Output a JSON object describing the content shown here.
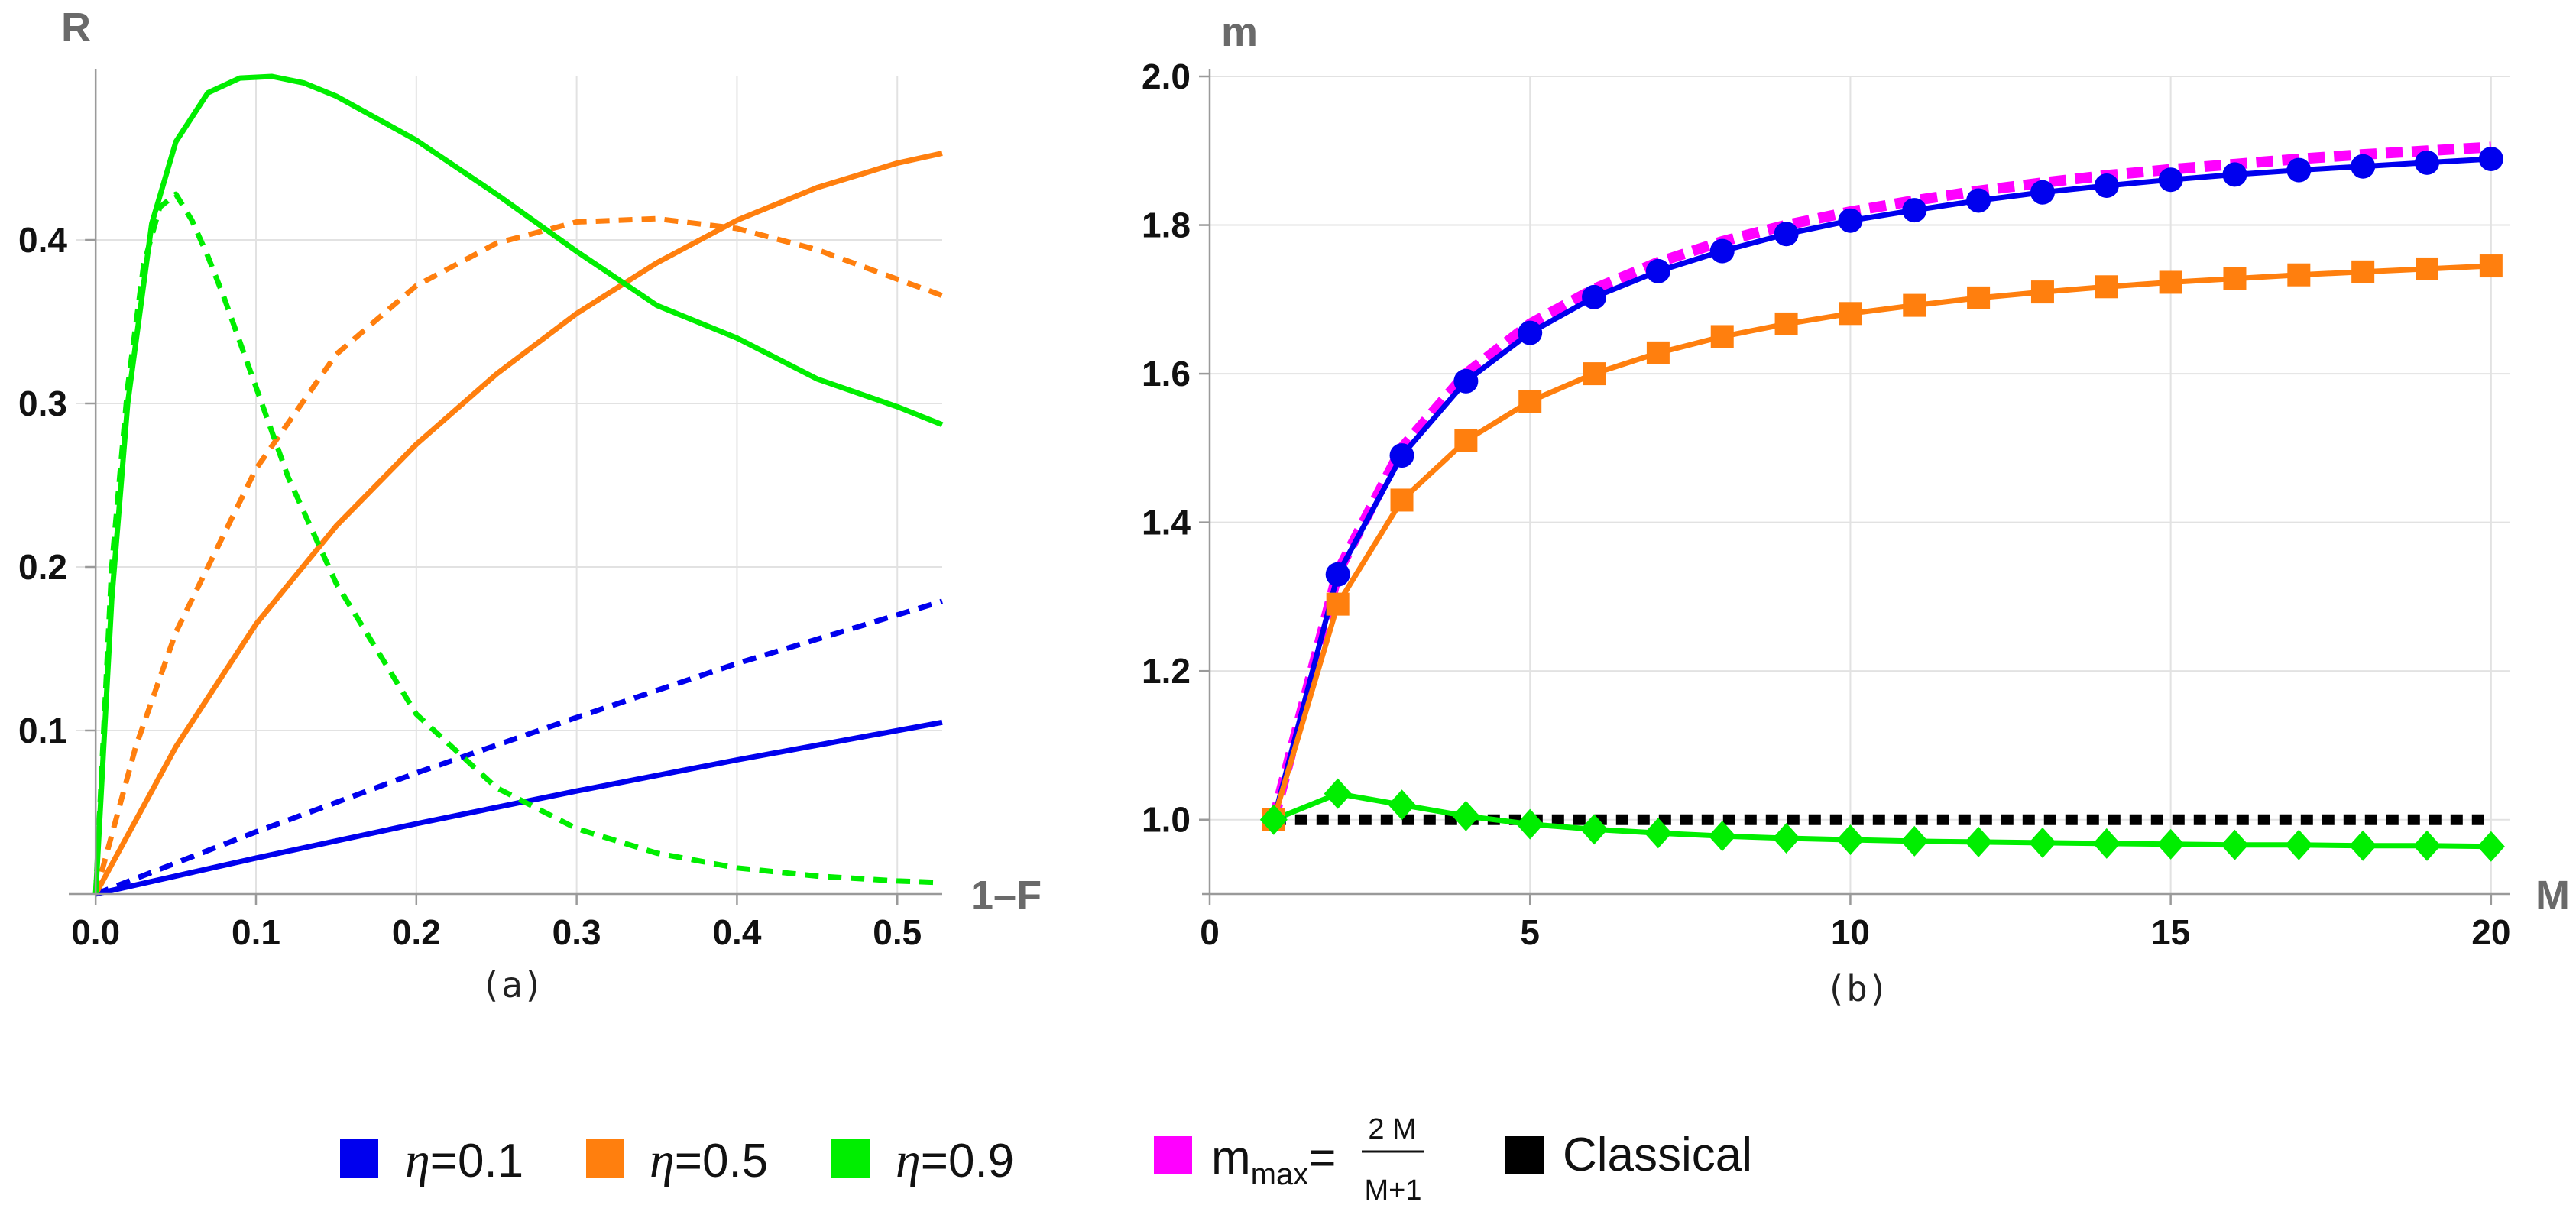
{
  "chart_data": [
    {
      "type": "line",
      "caption": "(a)",
      "xlabel": "1–F",
      "ylabel": "R",
      "xlim": [
        -0.012,
        0.528
      ],
      "ylim": [
        0,
        0.5
      ],
      "xticks": [
        "0.0",
        "0.1",
        "0.2",
        "0.3",
        "0.4",
        "0.5"
      ],
      "yticks": [
        "0.1",
        "0.2",
        "0.3",
        "0.4"
      ],
      "grid": true,
      "series": [
        {
          "name": "η=0.1 solid",
          "color": "#0000ee",
          "dash": false,
          "x": [
            0,
            0.1,
            0.2,
            0.3,
            0.4,
            0.528
          ],
          "y": [
            0,
            0.022,
            0.043,
            0.063,
            0.082,
            0.105
          ]
        },
        {
          "name": "η=0.1 dashed",
          "color": "#0000ee",
          "dash": true,
          "x": [
            0,
            0.1,
            0.2,
            0.3,
            0.4,
            0.528
          ],
          "y": [
            0,
            0.038,
            0.074,
            0.108,
            0.141,
            0.179
          ]
        },
        {
          "name": "η=0.5 solid",
          "color": "#ff7f0e",
          "dash": false,
          "x": [
            0,
            0.05,
            0.1,
            0.15,
            0.2,
            0.25,
            0.3,
            0.35,
            0.4,
            0.45,
            0.5,
            0.528
          ],
          "y": [
            0,
            0.09,
            0.165,
            0.225,
            0.275,
            0.318,
            0.355,
            0.386,
            0.412,
            0.432,
            0.447,
            0.453
          ]
        },
        {
          "name": "η=0.5 dashed",
          "color": "#ff7f0e",
          "dash": true,
          "x": [
            0,
            0.025,
            0.05,
            0.1,
            0.15,
            0.2,
            0.25,
            0.3,
            0.35,
            0.4,
            0.45,
            0.5,
            0.528
          ],
          "y": [
            0,
            0.09,
            0.16,
            0.26,
            0.33,
            0.372,
            0.398,
            0.411,
            0.413,
            0.407,
            0.394,
            0.376,
            0.366
          ]
        },
        {
          "name": "η=0.9 solid",
          "color": "#00ee00",
          "dash": false,
          "x": [
            0,
            0.01,
            0.02,
            0.035,
            0.05,
            0.07,
            0.09,
            0.11,
            0.13,
            0.15,
            0.2,
            0.25,
            0.3,
            0.35,
            0.4,
            0.45,
            0.5,
            0.528
          ],
          "y": [
            0,
            0.18,
            0.3,
            0.41,
            0.46,
            0.49,
            0.499,
            0.5,
            0.496,
            0.488,
            0.461,
            0.428,
            0.393,
            0.36,
            0.34,
            0.315,
            0.298,
            0.287
          ]
        },
        {
          "name": "η=0.9 dashed",
          "color": "#00ee00",
          "dash": true,
          "x": [
            0,
            0.005,
            0.01,
            0.02,
            0.03,
            0.04,
            0.05,
            0.06,
            0.07,
            0.08,
            0.1,
            0.12,
            0.15,
            0.2,
            0.25,
            0.3,
            0.35,
            0.4,
            0.45,
            0.5,
            0.528
          ],
          "y": [
            0,
            0.1,
            0.2,
            0.31,
            0.385,
            0.42,
            0.428,
            0.412,
            0.39,
            0.365,
            0.31,
            0.255,
            0.19,
            0.11,
            0.065,
            0.04,
            0.025,
            0.016,
            0.011,
            0.008,
            0.007
          ]
        }
      ]
    },
    {
      "type": "line",
      "caption": "(b)",
      "xlabel": "M",
      "ylabel": "m",
      "xlim": [
        0,
        20.3
      ],
      "ylim": [
        0.9,
        2.0
      ],
      "xticks": [
        "0",
        "5",
        "10",
        "15",
        "20"
      ],
      "yticks": [
        "1.0",
        "1.2",
        "1.4",
        "1.6",
        "1.8",
        "2.0"
      ],
      "grid": true,
      "series": [
        {
          "name": "m_max = 2M/(M+1)",
          "color": "#ff00ff",
          "dash": true,
          "marker": "none",
          "x": [
            1,
            2,
            3,
            4,
            5,
            6,
            7,
            8,
            9,
            10,
            11,
            12,
            13,
            14,
            15,
            16,
            17,
            18,
            19,
            20
          ],
          "y": [
            1.0,
            1.333,
            1.5,
            1.6,
            1.667,
            1.714,
            1.75,
            1.778,
            1.8,
            1.818,
            1.833,
            1.846,
            1.857,
            1.867,
            1.875,
            1.882,
            1.889,
            1.895,
            1.9,
            1.905
          ]
        },
        {
          "name": "Classical",
          "color": "#000000",
          "dash": true,
          "marker": "none",
          "x": [
            1,
            20
          ],
          "y": [
            1.0,
            1.0
          ]
        },
        {
          "name": "η=0.1",
          "color": "#0000ee",
          "dash": false,
          "marker": "circle",
          "x": [
            1,
            2,
            3,
            4,
            5,
            6,
            7,
            8,
            9,
            10,
            11,
            12,
            13,
            14,
            15,
            16,
            17,
            18,
            19,
            20
          ],
          "y": [
            1.0,
            1.33,
            1.49,
            1.59,
            1.655,
            1.703,
            1.738,
            1.765,
            1.788,
            1.806,
            1.82,
            1.833,
            1.844,
            1.853,
            1.861,
            1.868,
            1.874,
            1.879,
            1.884,
            1.889
          ]
        },
        {
          "name": "η=0.5",
          "color": "#ff7f0e",
          "dash": false,
          "marker": "square",
          "x": [
            1,
            2,
            3,
            4,
            5,
            6,
            7,
            8,
            9,
            10,
            11,
            12,
            13,
            14,
            15,
            16,
            17,
            18,
            19,
            20
          ],
          "y": [
            1.0,
            1.29,
            1.43,
            1.51,
            1.563,
            1.6,
            1.628,
            1.65,
            1.667,
            1.681,
            1.692,
            1.702,
            1.71,
            1.717,
            1.723,
            1.728,
            1.733,
            1.737,
            1.741,
            1.745
          ]
        },
        {
          "name": "η=0.9",
          "color": "#00ee00",
          "dash": false,
          "marker": "diamond",
          "x": [
            1,
            2,
            3,
            4,
            5,
            6,
            7,
            8,
            9,
            10,
            11,
            12,
            13,
            14,
            15,
            16,
            17,
            18,
            19,
            20
          ],
          "y": [
            1.0,
            1.035,
            1.02,
            1.005,
            0.994,
            0.987,
            0.982,
            0.978,
            0.975,
            0.973,
            0.971,
            0.97,
            0.969,
            0.968,
            0.967,
            0.966,
            0.966,
            0.965,
            0.965,
            0.964
          ]
        }
      ]
    }
  ],
  "legend": {
    "items": [
      {
        "symbol": "η",
        "label": "=0.1",
        "color": "#0000ee"
      },
      {
        "symbol": "η",
        "label": "=0.5",
        "color": "#ff7f0e"
      },
      {
        "symbol": "η",
        "label": "=0.9",
        "color": "#00ee00"
      }
    ],
    "mmax": {
      "color": "#ff00ff",
      "base": "m",
      "sub": "max",
      "eq": "=",
      "num": "2 M",
      "den": "M+1"
    },
    "classical": {
      "color": "#000000",
      "label": "Classical"
    }
  }
}
